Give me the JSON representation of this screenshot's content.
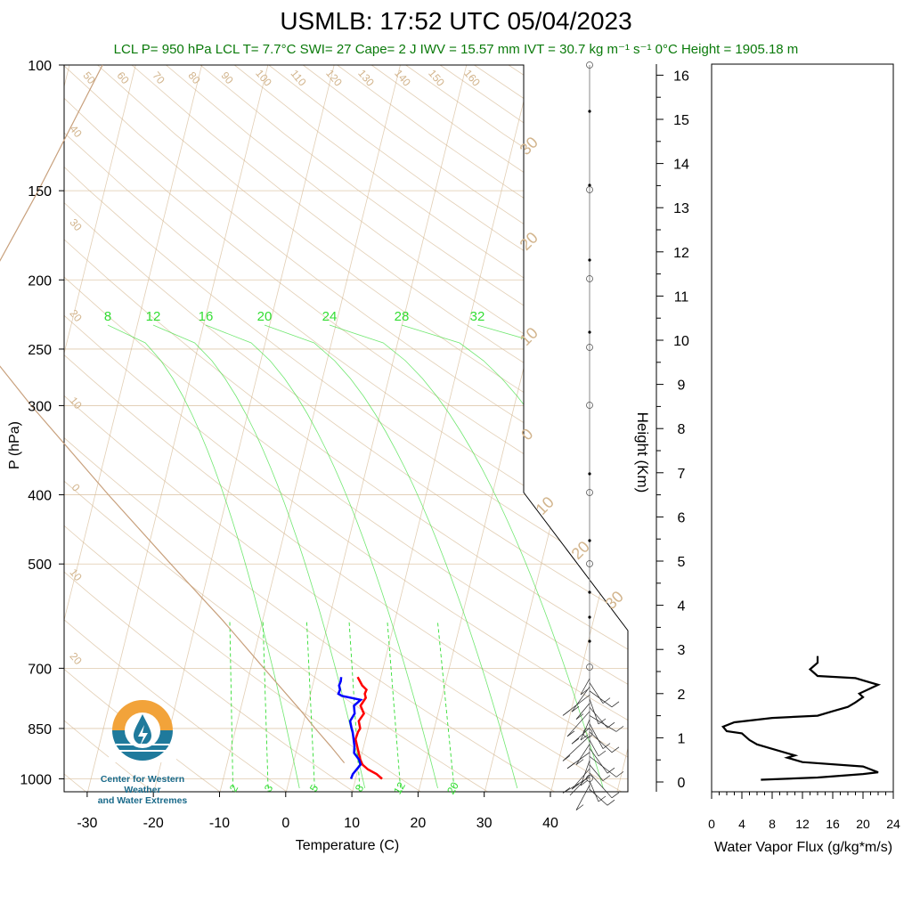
{
  "header": {
    "title": "USMLB: 17:52 UTC 05/04/2023",
    "subtitle": "LCL P= 950 hPa  LCL T= 7.7°C  SWI= 27  Cape= 2 J  IWV = 15.57 mm  IVT = 30.7 kg m⁻¹ s⁻¹  0°C Height = 1905.18 m"
  },
  "logo": {
    "line1": "Center for Western Weather",
    "line2": "and Water Extremes"
  },
  "colors": {
    "temperature": "#ff0000",
    "dewpoint": "#0000ff",
    "mixing_ratio": "#33dd33",
    "adiabats": "#d2b48c",
    "subtitle": "#0a7a0a"
  },
  "chart_data": [
    {
      "type": "line",
      "name": "skew-t",
      "xlabel": "Temperature (C)",
      "ylabel": "P (hPa)",
      "xlim": [
        -34,
        47
      ],
      "ylim": [
        1050,
        100
      ],
      "x_ticks": [
        "-30",
        "-20",
        "-10",
        "0",
        "10",
        "20",
        "30",
        "40"
      ],
      "y_ticks": [
        "100",
        "150",
        "200",
        "250",
        "300",
        "400",
        "500",
        "700",
        "850",
        "1000"
      ],
      "mixing_ratio_labels_top": [
        "8",
        "12",
        "16",
        "20",
        "24",
        "28",
        "32"
      ],
      "mixing_ratio_labels_bottom": [
        "2",
        "3",
        "5",
        "8",
        "12",
        "20"
      ],
      "dry_adiabat_labels_top": [
        "50",
        "60",
        "70",
        "80",
        "90",
        "100",
        "110",
        "120",
        "130",
        "140",
        "150",
        "160"
      ],
      "dry_adiabat_labels_left": [
        "40",
        "30",
        "20",
        "10",
        "0",
        "10",
        "20"
      ],
      "isotherm_labels_right": [
        "30",
        "20",
        "10",
        "0",
        "10",
        "20",
        "30"
      ],
      "series": [
        {
          "name": "Temperature",
          "p": [
            1000,
            985,
            970,
            955,
            940,
            920,
            900,
            880,
            860,
            850,
            830,
            810,
            790,
            770,
            760,
            750,
            740,
            730,
            720
          ],
          "t": [
            14.0,
            13.0,
            11.5,
            10.5,
            10.0,
            9.5,
            9.0,
            8.5,
            8.6,
            8.8,
            8.3,
            8.8,
            8.0,
            8.5,
            8.2,
            8.3,
            7.5,
            7.0,
            6.5
          ]
        },
        {
          "name": "Dewpoint",
          "p": [
            1000,
            985,
            970,
            955,
            940,
            920,
            900,
            880,
            860,
            850,
            830,
            810,
            790,
            775,
            765,
            760,
            750,
            740,
            730,
            720
          ],
          "t": [
            9.3,
            9.4,
            9.8,
            10.2,
            9.8,
            8.8,
            8.6,
            8.2,
            7.8,
            7.5,
            7.0,
            7.4,
            7.0,
            7.8,
            4.8,
            4.2,
            4.3,
            4.0,
            4.1,
            4.0
          ]
        },
        {
          "name": "Parcel",
          "p": [
            950,
            900,
            850,
            800,
            700,
            600,
            500,
            400,
            300,
            230,
            150,
            100
          ],
          "t": [
            7.7,
            5.0,
            2.0,
            -1.0,
            -8.0,
            -16.0,
            -26.0,
            -38.0,
            -53.0,
            -66.0,
            -60.0,
            -55.0
          ]
        }
      ]
    },
    {
      "type": "line",
      "name": "water-vapor-flux",
      "xlabel": "Water Vapor Flux (g/kg*m/s)",
      "ylabel": "Height (Km)",
      "xlim": [
        0,
        24
      ],
      "ylim": [
        -0.2,
        16.3
      ],
      "x_ticks": [
        "0",
        "4",
        "8",
        "12",
        "16",
        "20",
        "24"
      ],
      "y_ticks": [
        "0",
        "1",
        "2",
        "3",
        "4",
        "5",
        "6",
        "7",
        "8",
        "9",
        "10",
        "11",
        "12",
        "13",
        "14",
        "15",
        "16"
      ],
      "series": [
        {
          "name": "",
          "x": [
            6.5,
            14,
            20,
            22,
            20,
            12,
            10,
            11,
            8,
            6,
            5,
            4,
            2,
            1.5,
            3,
            8,
            14,
            16,
            18,
            19,
            20,
            19.5,
            22,
            19,
            14,
            13,
            14,
            14
          ],
          "y": [
            0.05,
            0.1,
            0.18,
            0.22,
            0.35,
            0.45,
            0.55,
            0.6,
            0.75,
            0.85,
            0.95,
            1.1,
            1.15,
            1.25,
            1.35,
            1.45,
            1.5,
            1.6,
            1.7,
            1.8,
            1.92,
            2.0,
            2.2,
            2.35,
            2.4,
            2.55,
            2.7,
            2.85
          ]
        }
      ]
    }
  ]
}
